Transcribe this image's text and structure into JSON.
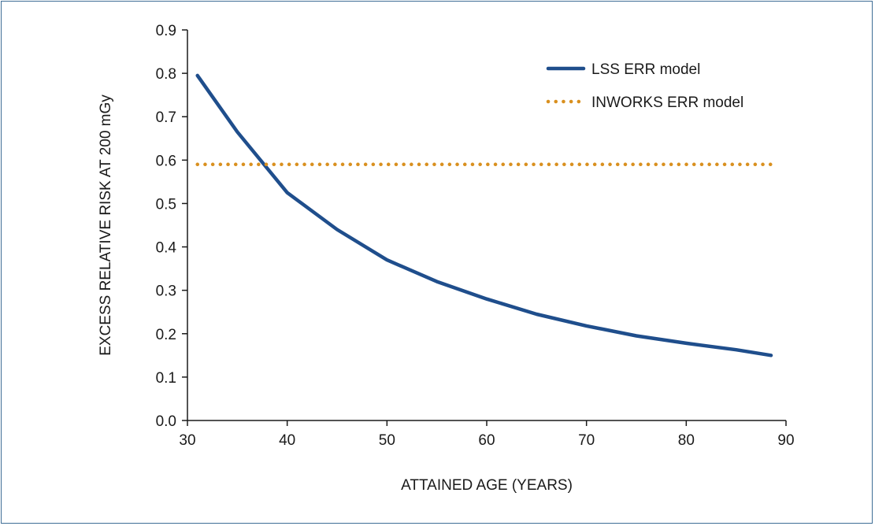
{
  "chart_data": {
    "type": "line",
    "xlabel": "ATTAINED AGE (YEARS)",
    "ylabel": "EXCESS RELATIVE RISK AT 200 mGy",
    "xlim": [
      30,
      90
    ],
    "ylim": [
      0.0,
      0.9
    ],
    "xticks": [
      "30",
      "40",
      "50",
      "60",
      "70",
      "80",
      "90"
    ],
    "yticks": [
      "0.0",
      "0.1",
      "0.2",
      "0.3",
      "0.4",
      "0.5",
      "0.6",
      "0.7",
      "0.8",
      "0.9"
    ],
    "grid": false,
    "legend_position": "top-right",
    "series": [
      {
        "name": "LSS ERR model",
        "style": "solid",
        "color": "#1f4e8c",
        "x": [
          31,
          35,
          40,
          45,
          50,
          55,
          60,
          65,
          70,
          75,
          80,
          85,
          88.5
        ],
        "y": [
          0.795,
          0.665,
          0.525,
          0.44,
          0.37,
          0.32,
          0.28,
          0.245,
          0.218,
          0.195,
          0.178,
          0.163,
          0.15
        ]
      },
      {
        "name": "INWORKS ERR model",
        "style": "dotted",
        "color": "#d9901f",
        "x": [
          31,
          88.5
        ],
        "y": [
          0.59,
          0.59
        ]
      }
    ]
  }
}
